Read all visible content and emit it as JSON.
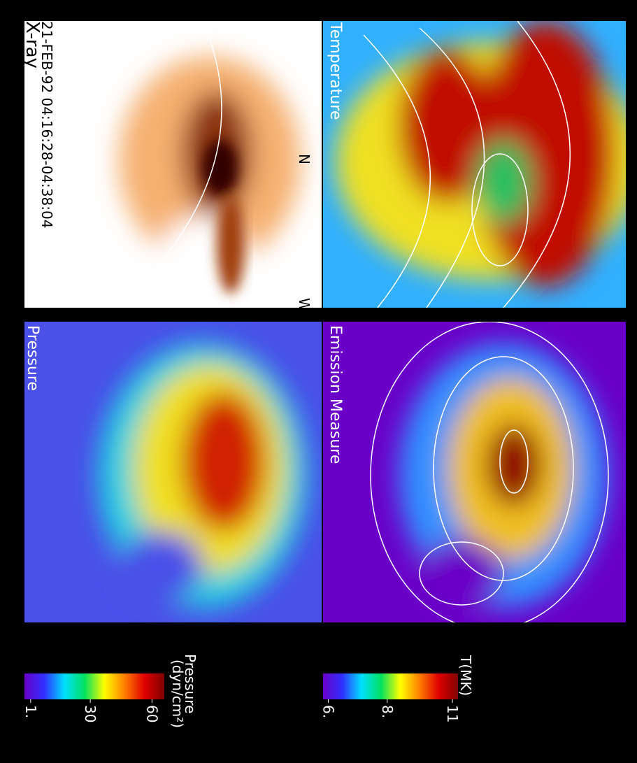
{
  "panels": {
    "xray": {
      "date": "21-FEB-92 04:16:28-04:38:04",
      "title": "X-ray",
      "north": "N",
      "west": "W"
    },
    "temperature": {
      "title": "Temperature"
    },
    "pressure": {
      "title": "Pressure"
    },
    "emission": {
      "title": "Emission Measure"
    }
  },
  "colorbars": [
    {
      "title": "Pressure",
      "unit": "(dyn/cm²)",
      "scale": "linear",
      "lim": [
        -2,
        66
      ],
      "ticks": [
        {
          "value": 1,
          "label": "1."
        },
        30,
        60
      ],
      "colors": [
        "#6a00c8",
        "#3030ff",
        "#00e0ff",
        "#00e060",
        "#ffff00",
        "#ff8000",
        "#e00000",
        "#800000"
      ]
    },
    {
      "title": "T(MK)",
      "scale": "log",
      "lim": [
        5.85,
        11.3
      ],
      "ticks": [
        {
          "value": 6,
          "label": "6."
        },
        {
          "value": 8,
          "label": "8."
        },
        11
      ],
      "colors": [
        "#6a00c8",
        "#3030ff",
        "#00e0ff",
        "#00e060",
        "#ffff00",
        "#ff8000",
        "#e00000",
        "#800000"
      ]
    }
  ]
}
